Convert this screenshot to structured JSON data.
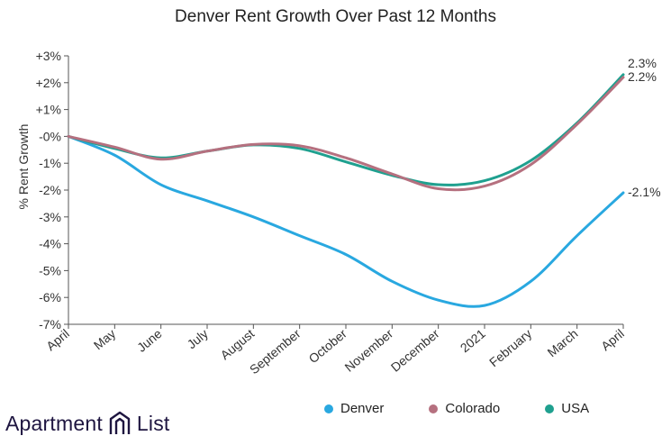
{
  "chart_data": {
    "type": "line",
    "title": "Denver Rent Growth Over Past 12 Months",
    "xlabel": "",
    "ylabel": "% Rent Growth",
    "categories": [
      "April",
      "May",
      "June",
      "July",
      "August",
      "September",
      "October",
      "November",
      "December",
      "2021",
      "February",
      "March",
      "April"
    ],
    "ylim": [
      -7,
      3
    ],
    "yticks": [
      {
        "value": 3,
        "label": "+3%"
      },
      {
        "value": 2,
        "label": "+2%"
      },
      {
        "value": 1,
        "label": "+1%"
      },
      {
        "value": 0,
        "label": "-0%"
      },
      {
        "value": -1,
        "label": "-1%"
      },
      {
        "value": -2,
        "label": "-2%"
      },
      {
        "value": -3,
        "label": "-3%"
      },
      {
        "value": -4,
        "label": "-4%"
      },
      {
        "value": -5,
        "label": "-5%"
      },
      {
        "value": -6,
        "label": "-6%"
      },
      {
        "value": -7,
        "label": "-7%"
      }
    ],
    "grid": false,
    "legend_position": "bottom-right",
    "series": [
      {
        "name": "Denver",
        "color": "#29a8e0",
        "values": [
          0,
          -0.7,
          -1.8,
          -2.4,
          -3.0,
          -3.7,
          -4.4,
          -5.4,
          -6.1,
          -6.3,
          -5.4,
          -3.7,
          -2.1
        ],
        "end_label": "-2.1%"
      },
      {
        "name": "Colorado",
        "color": "#b5707f",
        "values": [
          0,
          -0.4,
          -0.85,
          -0.55,
          -0.3,
          -0.35,
          -0.8,
          -1.4,
          -1.95,
          -1.85,
          -1.05,
          0.45,
          2.2
        ],
        "end_label": "2.2%"
      },
      {
        "name": "USA",
        "color": "#1fa08f",
        "values": [
          0,
          -0.45,
          -0.8,
          -0.55,
          -0.32,
          -0.45,
          -0.95,
          -1.45,
          -1.8,
          -1.65,
          -0.9,
          0.5,
          2.3
        ],
        "end_label": "2.3%"
      }
    ]
  },
  "branding": {
    "logo_word_1": "Apartment",
    "logo_word_2": "List"
  }
}
